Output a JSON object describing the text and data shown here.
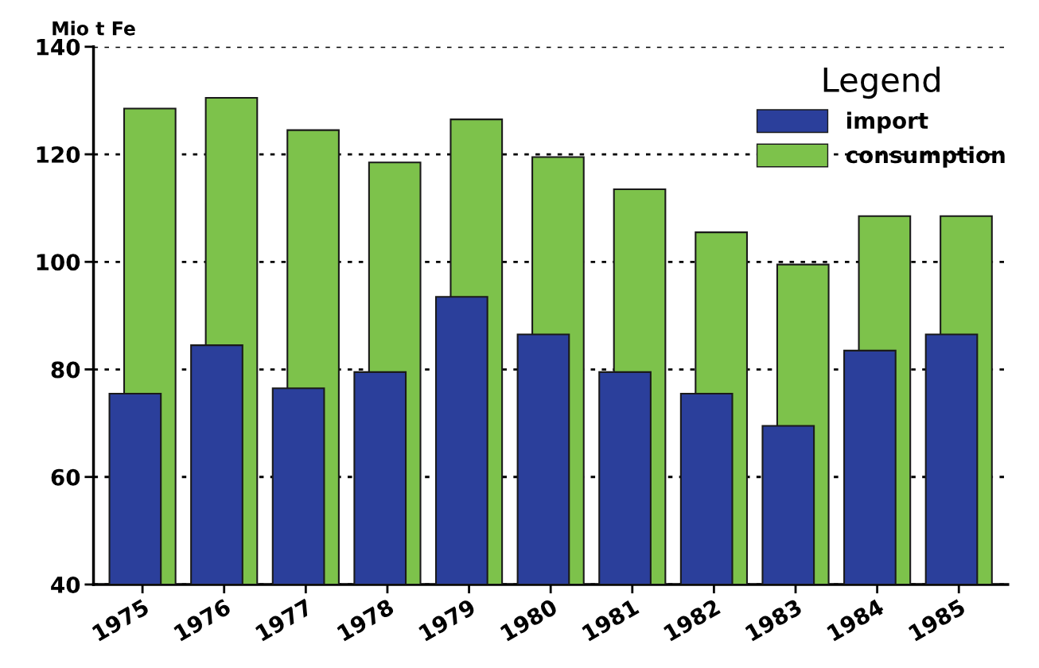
{
  "chart_data": {
    "type": "bar",
    "ylabel": "Mio t Fe",
    "legend_title": "Legend",
    "legend": "top right",
    "grid": "y",
    "categories": [
      "1975",
      "1976",
      "1977",
      "1978",
      "1979",
      "1980",
      "1981",
      "1982",
      "1983",
      "1984",
      "1985"
    ],
    "series": [
      {
        "name": "import",
        "color": "#2b3f9b",
        "values": [
          75.5,
          84.5,
          76.5,
          79.5,
          93.5,
          86.5,
          79.5,
          75.5,
          69.5,
          83.5,
          86.5
        ]
      },
      {
        "name": "consumption",
        "color": "#7dc24b",
        "values": [
          128.5,
          130.5,
          124.5,
          118.5,
          126.5,
          119.5,
          113.5,
          105.5,
          99.5,
          108.5,
          108.5
        ]
      }
    ],
    "ylim": [
      40,
      140
    ],
    "yticks": [
      40,
      60,
      80,
      100,
      120,
      140
    ]
  }
}
